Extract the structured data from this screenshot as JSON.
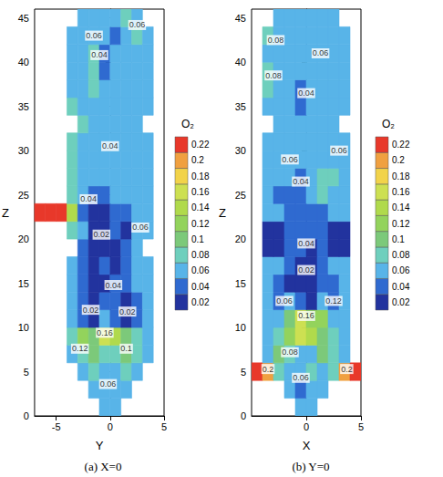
{
  "chart_data": [
    {
      "type": "contour",
      "title": "(a) X=0",
      "xlabel": "Y",
      "ylabel": "Z",
      "xlim": [
        -7,
        5
      ],
      "xticks": [
        -5,
        0,
        5
      ],
      "ylim": [
        0,
        46
      ],
      "yticks": [
        0,
        5,
        10,
        15,
        20,
        25,
        30,
        35,
        40,
        45
      ],
      "x_edges": [
        -7,
        -6,
        -5,
        -4,
        -3,
        -2,
        -1,
        0,
        1,
        2,
        3,
        4,
        5
      ],
      "z_edges": [
        0,
        2,
        4,
        6,
        8,
        10,
        12,
        14,
        16,
        18,
        20,
        22,
        24,
        26,
        28,
        30,
        32,
        34,
        36,
        38,
        40,
        42,
        44,
        46
      ],
      "cells": [
        [
          null,
          null,
          null,
          null,
          null,
          null,
          0.06,
          0.06,
          null,
          null,
          null,
          null
        ],
        [
          null,
          null,
          null,
          null,
          null,
          0.06,
          0.06,
          0.06,
          0.06,
          null,
          null,
          null
        ],
        [
          null,
          null,
          null,
          null,
          0.06,
          0.08,
          0.06,
          0.06,
          0.08,
          0.06,
          null,
          null
        ],
        [
          null,
          null,
          null,
          0.06,
          0.08,
          0.1,
          0.08,
          0.08,
          0.1,
          0.08,
          0.06,
          null
        ],
        [
          null,
          null,
          null,
          0.08,
          0.12,
          0.1,
          0.16,
          0.14,
          0.1,
          0.08,
          0.06,
          null
        ],
        [
          null,
          null,
          null,
          0.06,
          0.04,
          0.02,
          0.06,
          0.04,
          0.02,
          0.04,
          0.06,
          null
        ],
        [
          null,
          null,
          null,
          0.06,
          0.04,
          0.02,
          0.04,
          0.04,
          0.02,
          0.04,
          0.06,
          null
        ],
        [
          null,
          null,
          null,
          0.06,
          0.04,
          0.02,
          0.02,
          0.04,
          0.04,
          0.06,
          0.06,
          null
        ],
        [
          null,
          null,
          null,
          0.06,
          0.04,
          0.02,
          0.04,
          0.02,
          0.04,
          0.06,
          0.06,
          null
        ],
        [
          null,
          null,
          null,
          null,
          0.04,
          0.02,
          0.02,
          0.02,
          0.04,
          0.06,
          null,
          null
        ],
        [
          null,
          null,
          null,
          0.08,
          0.06,
          0.02,
          0.02,
          0.04,
          0.02,
          0.06,
          0.06,
          null
        ],
        [
          0.22,
          0.22,
          0.22,
          0.14,
          0.04,
          0.02,
          0.02,
          0.04,
          0.04,
          0.06,
          0.06,
          null
        ],
        [
          null,
          null,
          null,
          0.08,
          0.06,
          0.04,
          0.04,
          0.06,
          0.06,
          0.06,
          0.06,
          null
        ],
        [
          null,
          null,
          null,
          0.08,
          0.06,
          0.06,
          0.06,
          0.06,
          0.06,
          0.06,
          0.06,
          null
        ],
        [
          null,
          null,
          null,
          0.08,
          0.06,
          0.06,
          0.06,
          0.06,
          0.06,
          0.06,
          0.06,
          null
        ],
        [
          null,
          null,
          null,
          0.08,
          0.06,
          0.06,
          0.06,
          0.06,
          0.06,
          0.06,
          0.06,
          null
        ],
        [
          null,
          null,
          null,
          null,
          0.08,
          0.06,
          0.06,
          0.06,
          0.06,
          0.06,
          null,
          null
        ],
        [
          null,
          null,
          null,
          0.08,
          0.06,
          0.06,
          0.06,
          0.06,
          0.06,
          0.06,
          0.06,
          null
        ],
        [
          null,
          null,
          null,
          0.06,
          0.06,
          0.08,
          0.06,
          0.06,
          0.06,
          0.06,
          0.06,
          null
        ],
        [
          null,
          null,
          null,
          0.06,
          0.06,
          0.08,
          0.04,
          0.06,
          0.06,
          0.06,
          0.06,
          null
        ],
        [
          null,
          null,
          null,
          0.06,
          0.06,
          0.08,
          0.04,
          0.06,
          0.06,
          0.06,
          0.06,
          null
        ],
        [
          null,
          null,
          null,
          0.06,
          0.06,
          0.06,
          0.06,
          0.04,
          0.06,
          0.08,
          0.06,
          null
        ],
        [
          null,
          null,
          null,
          null,
          0.06,
          0.06,
          0.06,
          0.06,
          0.08,
          0.06,
          null,
          null
        ]
      ],
      "contour_labels": [
        {
          "x": -1.5,
          "z": 43,
          "value": 0.06
        },
        {
          "x": 2.5,
          "z": 44.2,
          "value": 0.06
        },
        {
          "x": -1,
          "z": 40.8,
          "value": 0.04
        },
        {
          "x": 0,
          "z": 30.5,
          "value": 0.04
        },
        {
          "x": -2,
          "z": 24.5,
          "value": 0.04
        },
        {
          "x": -0.8,
          "z": 20.5,
          "value": 0.02
        },
        {
          "x": 2.8,
          "z": 21.3,
          "value": 0.06
        },
        {
          "x": 0.3,
          "z": 14.8,
          "value": 0.04
        },
        {
          "x": -1.8,
          "z": 12,
          "value": 0.02
        },
        {
          "x": 1.6,
          "z": 11.8,
          "value": 0.02
        },
        {
          "x": -0.5,
          "z": 9.4,
          "value": 0.16
        },
        {
          "x": -2.8,
          "z": 7.6,
          "value": 0.12
        },
        {
          "x": 1.5,
          "z": 7.6,
          "value": 0.1
        },
        {
          "x": -0.2,
          "z": 3.6,
          "value": 0.06
        }
      ],
      "colorbar": {
        "title": "O₂",
        "levels": [
          0.02,
          0.04,
          0.06,
          0.08,
          0.1,
          0.12,
          0.14,
          0.16,
          0.18,
          0.2,
          0.22
        ],
        "colors": [
          "#22339e",
          "#2f6ad0",
          "#58b4e8",
          "#6ecfbd",
          "#7cc97a",
          "#93d35c",
          "#b0da4c",
          "#cde052",
          "#f2d34a",
          "#f0a040",
          "#e8382a"
        ]
      }
    },
    {
      "type": "contour",
      "title": "(b) Y=0",
      "xlabel": "X",
      "ylabel": "Z",
      "xlim": [
        -5,
        5
      ],
      "xticks": [
        0,
        5
      ],
      "ylim": [
        0,
        46
      ],
      "yticks": [
        0,
        5,
        10,
        15,
        20,
        25,
        30,
        35,
        40,
        45
      ],
      "x_edges": [
        -5,
        -4,
        -3,
        -2,
        -1,
        0,
        1,
        2,
        3,
        4,
        5
      ],
      "z_edges": [
        0,
        2,
        4,
        6,
        8,
        10,
        12,
        14,
        16,
        18,
        20,
        22,
        24,
        26,
        28,
        30,
        32,
        34,
        36,
        38,
        40,
        42,
        44,
        46
      ],
      "cells": [
        [
          null,
          null,
          null,
          null,
          0.06,
          0.06,
          null,
          null,
          null,
          null
        ],
        [
          null,
          null,
          null,
          0.06,
          0.04,
          0.06,
          0.06,
          null,
          null,
          null
        ],
        [
          0.22,
          0.2,
          0.08,
          0.06,
          0.06,
          0.08,
          0.06,
          0.08,
          0.2,
          0.22
        ],
        [
          null,
          0.06,
          0.1,
          0.08,
          0.06,
          0.06,
          0.1,
          0.08,
          0.06,
          null
        ],
        [
          null,
          0.06,
          0.08,
          0.12,
          0.16,
          0.14,
          0.1,
          0.08,
          0.06,
          null
        ],
        [
          null,
          0.06,
          0.06,
          0.1,
          0.16,
          0.12,
          0.12,
          0.06,
          0.06,
          null
        ],
        [
          null,
          0.06,
          0.04,
          0.06,
          0.04,
          0.02,
          0.06,
          0.04,
          0.06,
          null
        ],
        [
          null,
          0.06,
          0.04,
          0.02,
          0.02,
          0.02,
          0.04,
          0.04,
          0.06,
          null
        ],
        [
          null,
          0.06,
          0.06,
          0.04,
          0.02,
          0.02,
          0.04,
          0.06,
          0.06,
          null
        ],
        [
          null,
          0.02,
          0.02,
          0.04,
          0.04,
          0.02,
          0.04,
          0.02,
          0.02,
          null
        ],
        [
          null,
          0.02,
          0.02,
          0.04,
          0.04,
          0.04,
          0.04,
          0.02,
          0.02,
          null
        ],
        [
          null,
          0.06,
          0.06,
          0.04,
          0.04,
          0.04,
          0.04,
          0.06,
          0.06,
          null
        ],
        [
          null,
          0.06,
          0.04,
          0.04,
          0.04,
          0.06,
          0.08,
          0.06,
          0.06,
          null
        ],
        [
          null,
          0.06,
          0.06,
          0.06,
          0.04,
          0.06,
          0.08,
          0.08,
          0.06,
          null
        ],
        [
          null,
          0.06,
          0.06,
          0.06,
          0.06,
          0.06,
          0.06,
          0.06,
          0.06,
          null
        ],
        [
          null,
          0.06,
          0.06,
          0.06,
          0.06,
          0.06,
          0.06,
          0.06,
          0.06,
          null
        ],
        [
          null,
          null,
          0.06,
          0.06,
          0.06,
          0.06,
          0.06,
          0.06,
          null,
          null
        ],
        [
          null,
          0.06,
          0.06,
          0.06,
          0.04,
          0.06,
          0.06,
          0.06,
          0.06,
          null
        ],
        [
          null,
          0.08,
          0.06,
          0.06,
          0.04,
          0.06,
          0.06,
          0.06,
          0.06,
          null
        ],
        [
          null,
          0.08,
          0.06,
          0.06,
          0.06,
          0.06,
          0.06,
          0.06,
          0.06,
          null
        ],
        [
          null,
          0.06,
          0.06,
          0.06,
          0.06,
          0.06,
          0.06,
          0.06,
          0.06,
          null
        ],
        [
          null,
          0.08,
          0.06,
          0.06,
          0.06,
          0.06,
          0.06,
          0.06,
          0.06,
          null
        ],
        [
          null,
          null,
          0.06,
          0.06,
          0.06,
          0.06,
          0.06,
          0.06,
          null,
          null
        ]
      ],
      "contour_labels": [
        {
          "x": -2.8,
          "z": 42.5,
          "value": 0.08
        },
        {
          "x": 1.3,
          "z": 41,
          "value": 0.06
        },
        {
          "x": -3,
          "z": 38.5,
          "value": 0.08
        },
        {
          "x": 0,
          "z": 36.5,
          "value": 0.04
        },
        {
          "x": -1.5,
          "z": 29,
          "value": 0.06
        },
        {
          "x": 3,
          "z": 30,
          "value": 0.06
        },
        {
          "x": -0.5,
          "z": 26.5,
          "value": 0.04
        },
        {
          "x": 0,
          "z": 19.5,
          "value": 0.04
        },
        {
          "x": 0,
          "z": 16.5,
          "value": 0.02
        },
        {
          "x": -2,
          "z": 13,
          "value": 0.06
        },
        {
          "x": 2.5,
          "z": 13,
          "value": 0.12
        },
        {
          "x": 0,
          "z": 11.3,
          "value": 0.16
        },
        {
          "x": -1.5,
          "z": 7.2,
          "value": 0.08
        },
        {
          "x": -3.5,
          "z": 5.3,
          "value": 0.2
        },
        {
          "x": -0.5,
          "z": 4.3,
          "value": 0.06
        },
        {
          "x": 3.7,
          "z": 5.3,
          "value": 0.2
        }
      ],
      "colorbar": {
        "title": "O₂",
        "levels": [
          0.02,
          0.04,
          0.06,
          0.08,
          0.1,
          0.12,
          0.14,
          0.16,
          0.18,
          0.2,
          0.22
        ],
        "colors": [
          "#22339e",
          "#2f6ad0",
          "#58b4e8",
          "#6ecfbd",
          "#7cc97a",
          "#93d35c",
          "#b0da4c",
          "#cde052",
          "#f2d34a",
          "#f0a040",
          "#e8382a"
        ]
      }
    }
  ]
}
